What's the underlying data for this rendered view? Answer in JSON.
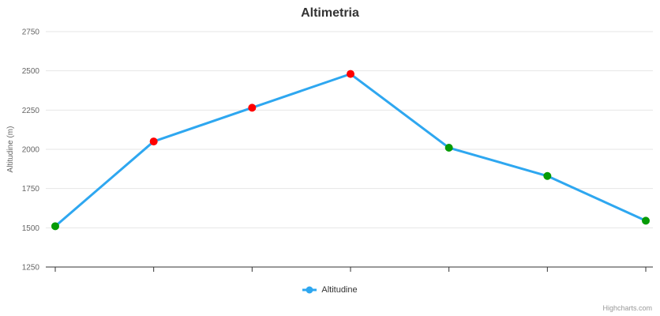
{
  "chart_data": {
    "type": "line",
    "title": "Altimetria",
    "xlabel": "",
    "ylabel": "Altitudine (m)",
    "ylim": [
      1250,
      2750
    ],
    "yticks": [
      2750,
      2500,
      2250,
      2000,
      1750,
      1500,
      1250
    ],
    "grid": true,
    "x_tick_marks": 7,
    "x_tick_labels": [],
    "legend_position": "bottom-center",
    "series": [
      {
        "name": "Altitudine",
        "color": "#2ea7f0",
        "line_width": 3,
        "marker_radius": 5,
        "values": [
          1510,
          2050,
          2265,
          2480,
          2010,
          1830,
          1545
        ],
        "marker_colors": [
          "#069b06",
          "#ff0000",
          "#ff0000",
          "#ff0000",
          "#069b06",
          "#069b06",
          "#069b06"
        ]
      }
    ]
  },
  "credits": "Highcharts.com",
  "style": {
    "background": "#ffffff",
    "grid_color": "#e6e6e6",
    "axis_line_color": "#333333",
    "tick_label_color": "#666666",
    "title_color": "#333333",
    "legend_text_color": "#333333",
    "credits_color": "#999999"
  }
}
